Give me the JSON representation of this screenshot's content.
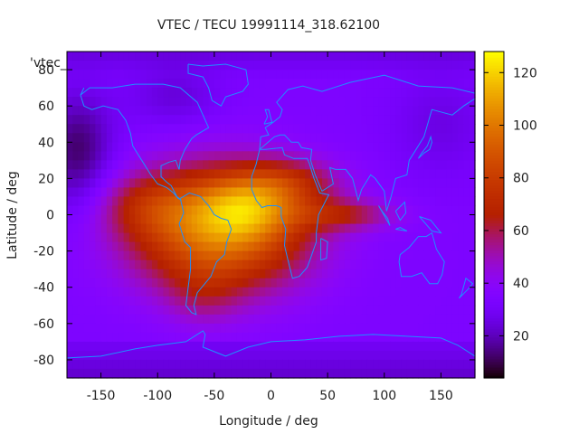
{
  "chart_data": {
    "type": "heatmap",
    "title": "VTEC / TECU 19991114_318.62100",
    "xlabel": "Longitude / deg",
    "ylabel": "Latitude / deg",
    "series_key": "'vtec_",
    "xlim": [
      -180,
      180
    ],
    "ylim": [
      -90,
      90
    ],
    "x_ticks": [
      -150,
      -100,
      -50,
      0,
      50,
      100,
      150
    ],
    "y_ticks": [
      -80,
      -60,
      -40,
      -20,
      0,
      20,
      40,
      60,
      80
    ],
    "colorbar": {
      "range": [
        4,
        128
      ],
      "ticks": [
        20,
        40,
        60,
        80,
        100,
        120
      ],
      "colormap": "gnuplot-pm3d"
    },
    "grid": false,
    "vtec_model": {
      "background": 34,
      "polar_south": 22,
      "blobs": [
        {
          "lon": -45,
          "lat": -8,
          "slon": 55,
          "slat": 24,
          "amp": 68
        },
        {
          "lon": -20,
          "lat": 4,
          "slon": 32,
          "slat": 12,
          "amp": 30
        },
        {
          "lon": 15,
          "lat": 18,
          "slon": 32,
          "slat": 9,
          "amp": 22
        },
        {
          "lon": 65,
          "lat": 0,
          "slon": 32,
          "slat": 6,
          "amp": 24
        },
        {
          "lon": -110,
          "lat": 5,
          "slon": 28,
          "slat": 12,
          "amp": 18
        },
        {
          "lon": -60,
          "lat": -45,
          "slon": 22,
          "slat": 12,
          "amp": 10
        }
      ],
      "dark_spots": [
        {
          "lon": -170,
          "lat": 35,
          "slon": 22,
          "slat": 22,
          "amp": 22
        },
        {
          "lon": -85,
          "lat": 65,
          "slon": 28,
          "slat": 12,
          "amp": 10
        },
        {
          "lon": 150,
          "lat": 50,
          "slon": 30,
          "slat": 20,
          "amp": 8
        }
      ]
    }
  }
}
